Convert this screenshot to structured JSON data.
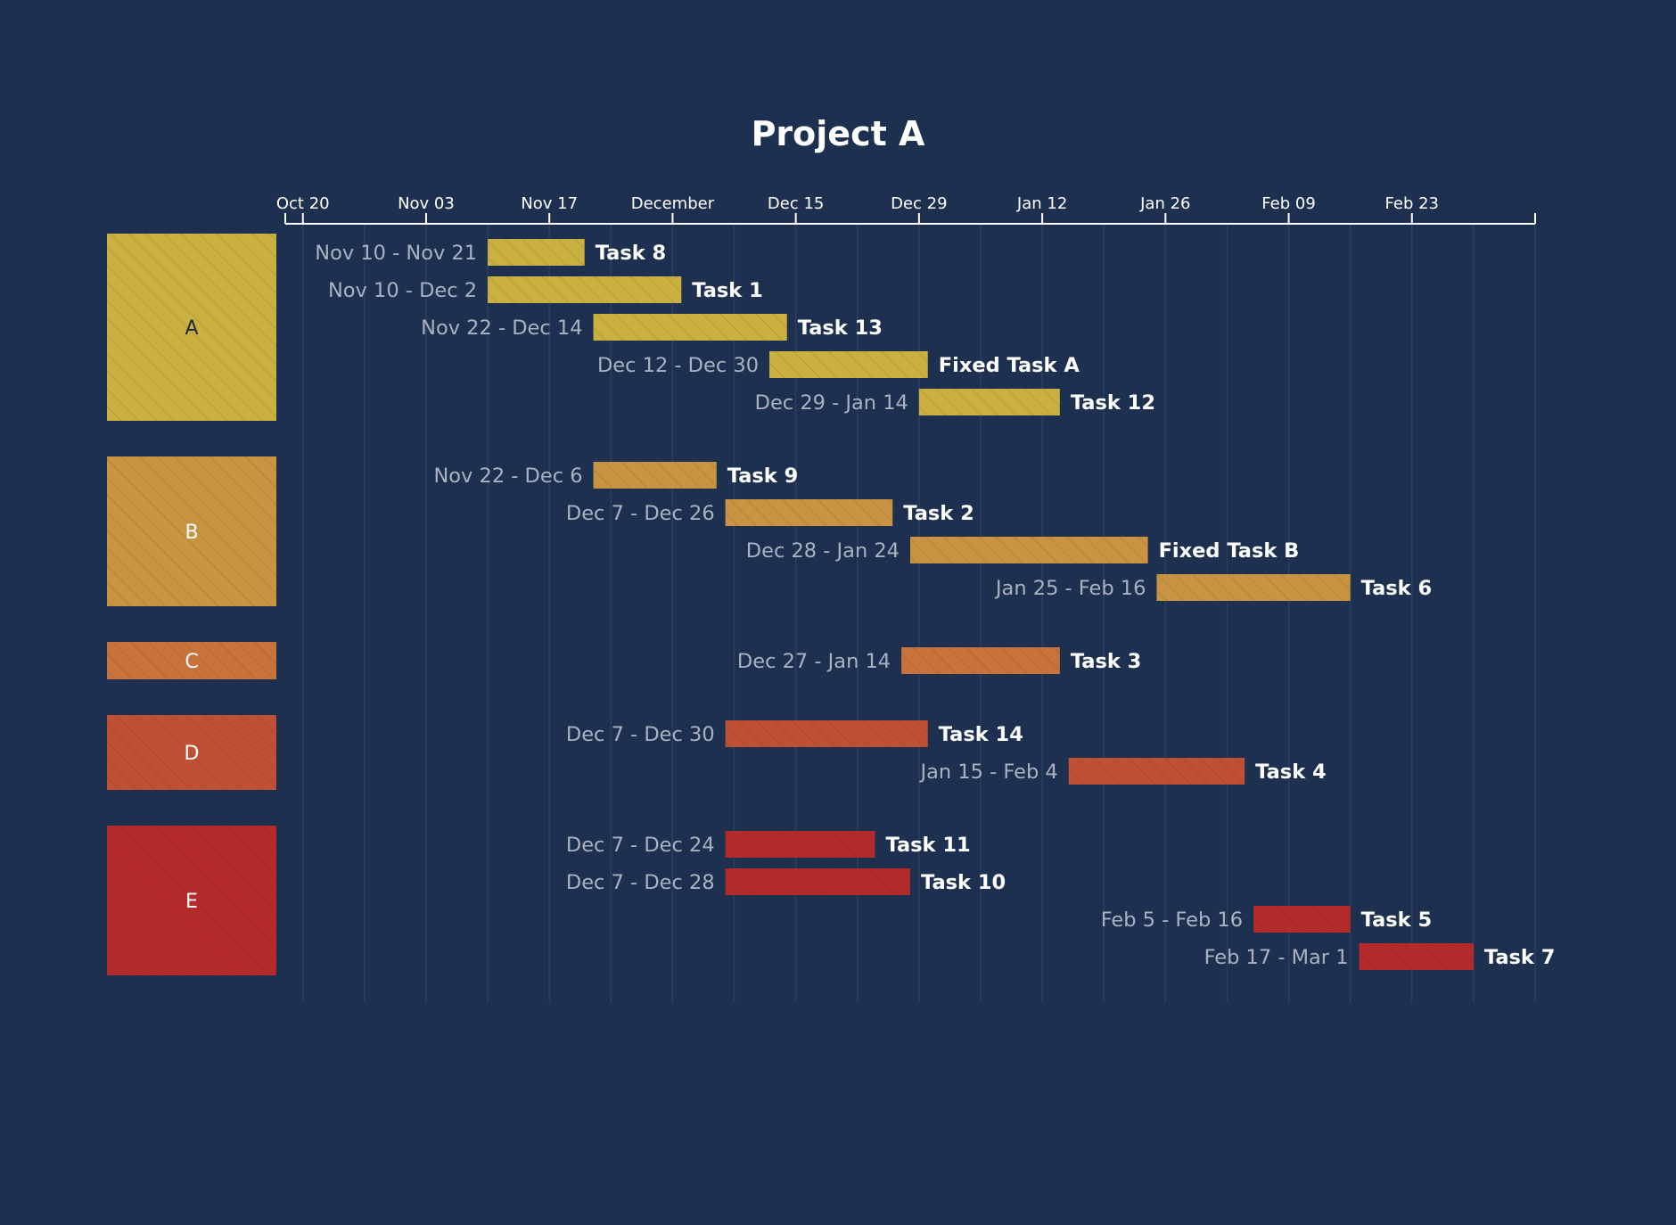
{
  "chart_data": {
    "type": "gantt",
    "title": "Project A",
    "x_axis": {
      "ticks": [
        {
          "date": "2019-10-20",
          "label": "Oct 20"
        },
        {
          "date": "2019-11-03",
          "label": "Nov 03"
        },
        {
          "date": "2019-11-17",
          "label": "Nov 17"
        },
        {
          "date": "2019-12-01",
          "label": "December"
        },
        {
          "date": "2019-12-15",
          "label": "Dec 15"
        },
        {
          "date": "2019-12-29",
          "label": "Dec 29"
        },
        {
          "date": "2020-01-12",
          "label": "Jan 12"
        },
        {
          "date": "2020-01-26",
          "label": "Jan 26"
        },
        {
          "date": "2020-02-09",
          "label": "Feb 09"
        },
        {
          "date": "2020-02-23",
          "label": "Feb 23"
        }
      ],
      "range": [
        "2019-10-18",
        "2020-03-08"
      ]
    },
    "grid": true,
    "groups": [
      {
        "name": "A",
        "color": "#c9b040",
        "label_color": "#1e2a3a",
        "tasks": [
          {
            "name": "Task 8",
            "start": "2019-11-10",
            "end": "2019-11-21",
            "date_label": "Nov 10 - Nov 21"
          },
          {
            "name": "Task 1",
            "start": "2019-11-10",
            "end": "2019-12-02",
            "date_label": "Nov 10 - Dec 2"
          },
          {
            "name": "Task 13",
            "start": "2019-11-22",
            "end": "2019-12-14",
            "date_label": "Nov 22 - Dec 14"
          },
          {
            "name": "Fixed Task A",
            "start": "2019-12-12",
            "end": "2019-12-30",
            "date_label": "Dec 12 - Dec 30"
          },
          {
            "name": "Task 12",
            "start": "2019-12-29",
            "end": "2020-01-14",
            "date_label": "Dec 29 - Jan 14"
          }
        ]
      },
      {
        "name": "B",
        "color": "#c99442",
        "label_color": "#ffffff",
        "tasks": [
          {
            "name": "Task 9",
            "start": "2019-11-22",
            "end": "2019-12-06",
            "date_label": "Nov 22 - Dec 6"
          },
          {
            "name": "Task 2",
            "start": "2019-12-07",
            "end": "2019-12-26",
            "date_label": "Dec 7 - Dec 26"
          },
          {
            "name": "Fixed Task B",
            "start": "2019-12-28",
            "end": "2020-01-24",
            "date_label": "Dec 28 - Jan 24"
          },
          {
            "name": "Task 6",
            "start": "2020-01-25",
            "end": "2020-02-16",
            "date_label": "Jan 25 - Feb 16"
          }
        ]
      },
      {
        "name": "C",
        "color": "#c8733c",
        "label_color": "#ffffff",
        "tasks": [
          {
            "name": "Task 3",
            "start": "2019-12-27",
            "end": "2020-01-14",
            "date_label": "Dec 27 - Jan 14"
          }
        ]
      },
      {
        "name": "D",
        "color": "#c05035",
        "label_color": "#ffffff",
        "tasks": [
          {
            "name": "Task 14",
            "start": "2019-12-07",
            "end": "2019-12-30",
            "date_label": "Dec 7 - Dec 30"
          },
          {
            "name": "Task 4",
            "start": "2020-01-15",
            "end": "2020-02-04",
            "date_label": "Jan 15 - Feb 4"
          }
        ]
      },
      {
        "name": "E",
        "color": "#b52b2b",
        "label_color": "#ffffff",
        "tasks": [
          {
            "name": "Task 11",
            "start": "2019-12-07",
            "end": "2019-12-24",
            "date_label": "Dec 7 - Dec 24"
          },
          {
            "name": "Task 10",
            "start": "2019-12-07",
            "end": "2019-12-28",
            "date_label": "Dec 7 - Dec 28"
          },
          {
            "name": "Task 5",
            "start": "2020-02-05",
            "end": "2020-02-16",
            "date_label": "Feb 5 - Feb 16"
          },
          {
            "name": "Task 7",
            "start": "2020-02-17",
            "end": "2020-03-01",
            "date_label": "Feb 17 - Mar 1"
          }
        ]
      }
    ]
  },
  "colors": {
    "background": "#1e3050",
    "grid": "#2c3f60",
    "axis": "#ffffff",
    "date_text": "#a9b2c1",
    "task_text": "#ffffff"
  }
}
